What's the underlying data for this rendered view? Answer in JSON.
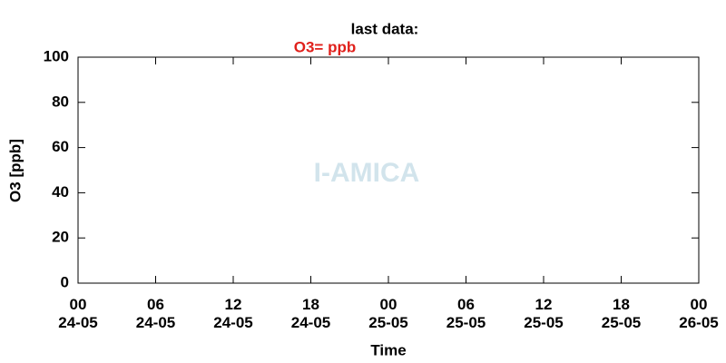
{
  "chart_data": {
    "type": "line",
    "title": "last data:",
    "annotation": "O3= ppb",
    "annotation_color": "#e0201b",
    "watermark": "I-AMICA",
    "ylabel": "O3 [ppb]",
    "xlabel": "Time",
    "x": [],
    "values": [],
    "color": "#e0201b",
    "xlim": [
      0,
      48
    ],
    "xticks": [
      {
        "value": 0,
        "label": "00\n24-05"
      },
      {
        "value": 6,
        "label": "06\n24-05"
      },
      {
        "value": 12,
        "label": "12\n24-05"
      },
      {
        "value": 18,
        "label": "18\n24-05"
      },
      {
        "value": 24,
        "label": "00\n25-05"
      },
      {
        "value": 30,
        "label": "06\n25-05"
      },
      {
        "value": 36,
        "label": "12\n25-05"
      },
      {
        "value": 42,
        "label": "18\n25-05"
      },
      {
        "value": 48,
        "label": "00\n26-05"
      }
    ],
    "ylim": [
      0,
      100
    ],
    "yticks": [
      0,
      20,
      40,
      60,
      80,
      100
    ],
    "grid": false
  }
}
